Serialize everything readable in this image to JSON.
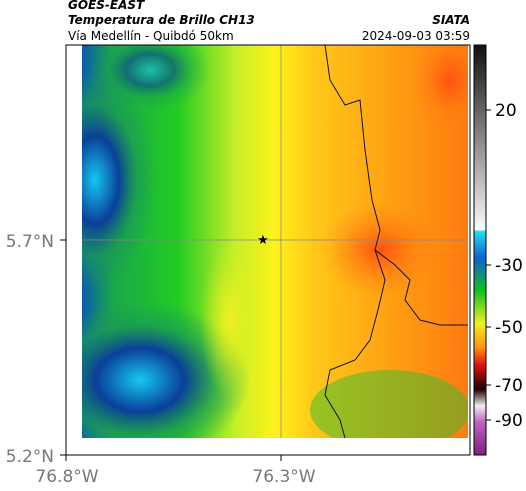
{
  "header": {
    "title": "GOES-EAST",
    "subtitle": "Temperatura de Brillo CH13",
    "source": "SIATA",
    "route": "Vía Medellín - Quibdó 50km",
    "datetime": "2024-09-03 03:59"
  },
  "map": {
    "lat_labels": [
      "5.7°N",
      "5.2°N"
    ],
    "lon_labels": [
      "76.8°W",
      "76.3°W"
    ]
  },
  "colorbar": {
    "ticks": [
      20,
      -30,
      -50,
      -70,
      -90
    ]
  }
}
